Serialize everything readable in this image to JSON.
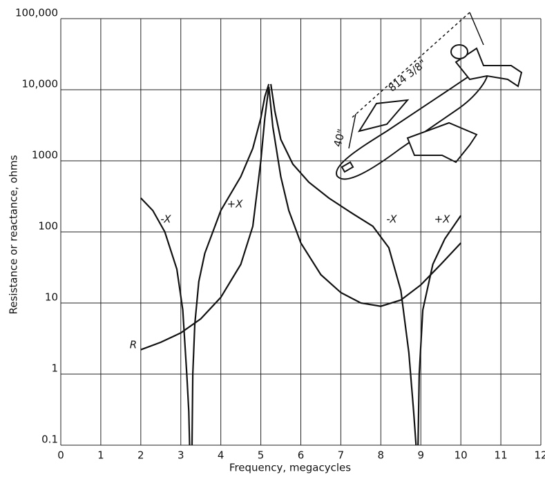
{
  "chart_data": {
    "type": "line",
    "x_label": "Frequency, megacycles",
    "y_label": "Resistance or reactance, ohms",
    "log_y": true,
    "grid": true,
    "xlim": [
      0,
      12
    ],
    "xticks": [
      0,
      1,
      2,
      3,
      4,
      5,
      6,
      7,
      8,
      9,
      10,
      11,
      12
    ],
    "ylim": [
      0.1,
      100000
    ],
    "yticks": [
      0.1,
      1,
      10,
      100,
      1000,
      {
        "value": 10000,
        "label": "10,000"
      },
      {
        "value": 100000,
        "label": "100,000"
      }
    ],
    "series": [
      {
        "name": "R",
        "color": "#111111",
        "x": [
          2,
          2.5,
          3,
          3.5,
          4,
          4.5,
          4.8,
          5,
          5.1,
          5.2,
          5.3,
          5.5,
          5.7,
          6,
          6.5,
          7,
          7.5,
          8,
          8.5,
          9,
          9.5,
          10
        ],
        "values": [
          2.2,
          2.8,
          3.8,
          6,
          12,
          35,
          120,
          1000,
          4000,
          11000,
          3000,
          600,
          200,
          70,
          25,
          14,
          10,
          9,
          11,
          18,
          35,
          70
        ]
      },
      {
        "name": "-X",
        "color": "#111111",
        "x": [
          2,
          2.3,
          2.6,
          2.9,
          3.05,
          3.15,
          3.2,
          3.22
        ],
        "values": [
          300,
          200,
          100,
          30,
          8,
          1,
          0.3,
          0.1
        ]
      },
      {
        "name": "+X",
        "color": "#111111",
        "x": [
          3.28,
          3.3,
          3.35,
          3.45,
          3.6,
          4,
          4.5,
          4.8,
          5,
          5.1,
          5.2
        ],
        "values": [
          0.1,
          1,
          5,
          20,
          50,
          200,
          600,
          1500,
          4000,
          8000,
          12000
        ]
      },
      {
        "name": "-X",
        "color": "#111111",
        "x": [
          5.25,
          5.35,
          5.5,
          5.8,
          6.2,
          6.7,
          7.3,
          7.8,
          8.2,
          8.5,
          8.7,
          8.82,
          8.88
        ],
        "values": [
          12000,
          5000,
          2000,
          900,
          500,
          300,
          180,
          120,
          60,
          15,
          2,
          0.3,
          0.1
        ]
      },
      {
        "name": "+X",
        "color": "#111111",
        "x": [
          8.93,
          8.96,
          9.05,
          9.3,
          9.6,
          10
        ],
        "values": [
          0.1,
          1,
          8,
          35,
          80,
          170
        ]
      }
    ],
    "annotations": [
      "814 3/8\"",
      "40\""
    ]
  }
}
